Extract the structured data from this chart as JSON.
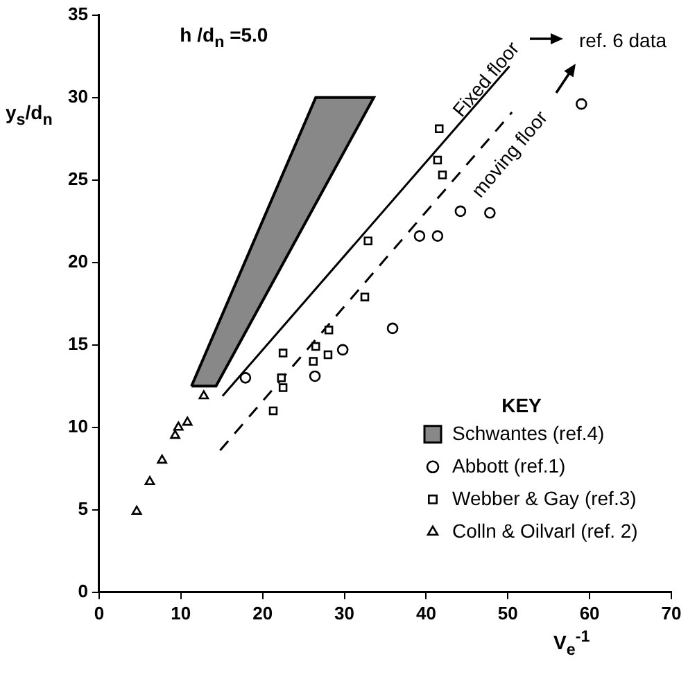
{
  "chart_data": {
    "type": "scatter",
    "xlabel": "V$_{e}$$^{-1}$",
    "ylabel": "y$_{s}$/d$_{n}$",
    "legend_title": "KEY",
    "xlim": [
      0,
      70
    ],
    "xticks": [
      0,
      10,
      20,
      30,
      40,
      50,
      60,
      70
    ],
    "ylim": [
      0,
      35
    ],
    "yticks": [
      0,
      5,
      10,
      15,
      20,
      25,
      30,
      35
    ],
    "grid": false,
    "legend": "right",
    "series": [
      {
        "name": "Schwantes (ref.4)",
        "type": "area",
        "color": "#000000",
        "x": [
          11.3,
          26.5,
          33.6,
          14.3
        ],
        "values": [
          12.5,
          30,
          30,
          12.5
        ]
      },
      {
        "name": "Abbott (ref.1)",
        "marker": "circle",
        "color": "#000000",
        "x": [
          17.9,
          26.4,
          29.8,
          35.9,
          39.2,
          41.4,
          44.2,
          47.8,
          59.0
        ],
        "values": [
          13.0,
          13.1,
          14.7,
          16.0,
          21.6,
          21.6,
          23.1,
          23.0,
          29.6
        ]
      },
      {
        "name": "Webber & Gay (ref.3)",
        "marker": "square",
        "color": "#000000",
        "x": [
          21.3,
          22.3,
          22.5,
          22.5,
          26.2,
          26.5,
          28.0,
          28.1,
          32.5,
          32.9,
          41.4,
          41.6,
          42.0
        ],
        "values": [
          11.0,
          13.0,
          12.4,
          14.5,
          14.0,
          14.9,
          14.4,
          15.9,
          17.9,
          21.3,
          26.2,
          28.1,
          25.3
        ]
      },
      {
        "name": "Colln & Oilvarl (ref. 2)",
        "marker": "triangle",
        "color": "#000000",
        "x": [
          4.6,
          6.2,
          7.7,
          9.3,
          9.7,
          10.8,
          12.8
        ],
        "values": [
          4.9,
          6.7,
          8.0,
          9.5,
          10.0,
          10.3,
          11.9
        ]
      },
      {
        "type": "line",
        "line_style": "solid",
        "color": "#000000",
        "x": [
          15.1,
          50.2
        ],
        "values": [
          11.9,
          31.9
        ]
      },
      {
        "type": "line",
        "line_style": "dashed",
        "color": "#000000",
        "x": [
          14.8,
          50.5
        ],
        "values": [
          8.6,
          29.1
        ]
      }
    ],
    "annotations": [
      "h /d$_{n}$ =5.0",
      "Fixed floor",
      "moving floor",
      "ref. 6 data"
    ]
  }
}
